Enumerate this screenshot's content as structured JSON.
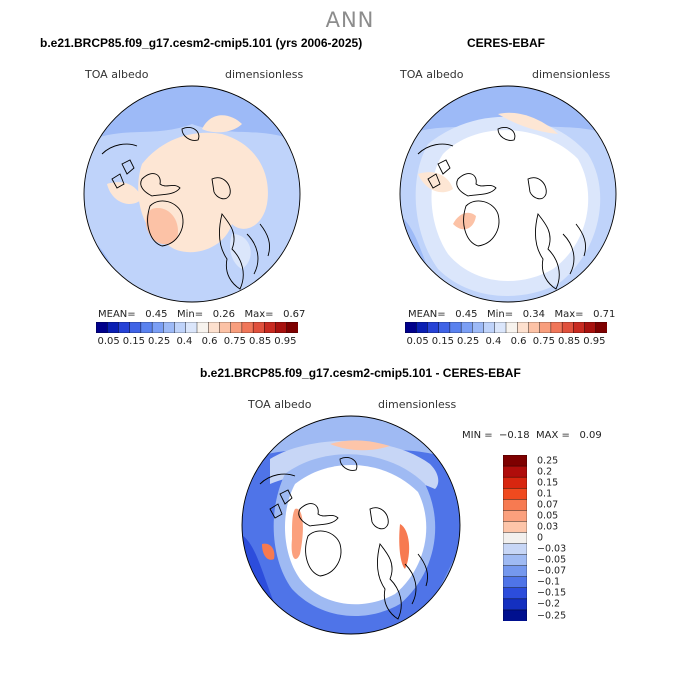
{
  "season": "ANN",
  "panels": [
    {
      "title": "b.e21.BRCP85.f09_g17.cesm2-cmip5.101 (yrs 2006-2025)",
      "variable": "TOA albedo",
      "units": "dimensionless",
      "stats": {
        "mean_label": "MEAN=",
        "mean": "0.45",
        "min_label": "Min=",
        "min": "0.26",
        "max_label": "Max=",
        "max": "0.67"
      }
    },
    {
      "title": "CERES-EBAF",
      "variable": "TOA albedo",
      "units": "dimensionless",
      "stats": {
        "mean_label": "MEAN=",
        "mean": "0.45",
        "min_label": "Min=",
        "min": "0.34",
        "max_label": "Max=",
        "max": "0.71"
      }
    },
    {
      "title": "b.e21.BRCP85.f09_g17.cesm2-cmip5.101 - CERES-EBAF",
      "variable": "TOA albedo",
      "units": "dimensionless",
      "stats": {
        "min_label": "MIN =",
        "min": "−0.18",
        "max_label": "MAX =",
        "max": "0.09"
      }
    }
  ],
  "colorbar_horizontal": {
    "ticks": [
      "0.05",
      "0.15",
      "0.25",
      "0.4",
      "0.6",
      "0.75",
      "0.85",
      "0.95"
    ],
    "colors": [
      "#00008b",
      "#0a1fb3",
      "#2642d6",
      "#3f63e6",
      "#5a82ef",
      "#7b9ff5",
      "#9dbaf7",
      "#bfd3fa",
      "#dbe6fb",
      "#f7f3ee",
      "#fde0ce",
      "#fcc2a6",
      "#f89e7d",
      "#f07659",
      "#e0503c",
      "#c82a20",
      "#a8110e",
      "#7e0000"
    ]
  },
  "colorbar_vertical": {
    "ticks": [
      "0.25",
      "0.2",
      "0.15",
      "0.1",
      "0.07",
      "0.05",
      "0.03",
      "0",
      "−0.03",
      "−0.05",
      "−0.07",
      "−0.1",
      "−0.15",
      "−0.2",
      "−0.25"
    ],
    "colors": [
      "#7e0000",
      "#b00d0b",
      "#d8260f",
      "#f04a1f",
      "#f77a51",
      "#fba07d",
      "#fdc5a9",
      "#f2f0ee",
      "#c7d6f6",
      "#9fbaf3",
      "#7598ee",
      "#4f74e8",
      "#2c4ddc",
      "#1430c0",
      "#00108f"
    ]
  },
  "chart_data": [
    {
      "type": "heatmap",
      "projection": "north polar stereographic",
      "title": "b.e21.BRCP85.f09_g17.cesm2-cmip5.101 (yrs 2006-2025)",
      "variable": "TOA albedo",
      "units": "dimensionless",
      "mean": 0.45,
      "min": 0.26,
      "max": 0.67,
      "levels": [
        0.05,
        0.1,
        0.15,
        0.2,
        0.25,
        0.3,
        0.35,
        0.4,
        0.45,
        0.5,
        0.55,
        0.6,
        0.65,
        0.7,
        0.75,
        0.8,
        0.85,
        0.9,
        0.95
      ]
    },
    {
      "type": "heatmap",
      "projection": "north polar stereographic",
      "title": "CERES-EBAF",
      "variable": "TOA albedo",
      "units": "dimensionless",
      "mean": 0.45,
      "min": 0.34,
      "max": 0.71,
      "levels": [
        0.05,
        0.1,
        0.15,
        0.2,
        0.25,
        0.3,
        0.35,
        0.4,
        0.45,
        0.5,
        0.55,
        0.6,
        0.65,
        0.7,
        0.75,
        0.8,
        0.85,
        0.9,
        0.95
      ]
    },
    {
      "type": "heatmap",
      "projection": "north polar stereographic",
      "title": "b.e21.BRCP85.f09_g17.cesm2-cmip5.101 - CERES-EBAF",
      "variable": "TOA albedo",
      "units": "dimensionless",
      "min": -0.18,
      "max": 0.09,
      "levels": [
        -0.25,
        -0.2,
        -0.15,
        -0.1,
        -0.07,
        -0.05,
        -0.03,
        0,
        0.03,
        0.05,
        0.07,
        0.1,
        0.15,
        0.2,
        0.25
      ]
    }
  ]
}
